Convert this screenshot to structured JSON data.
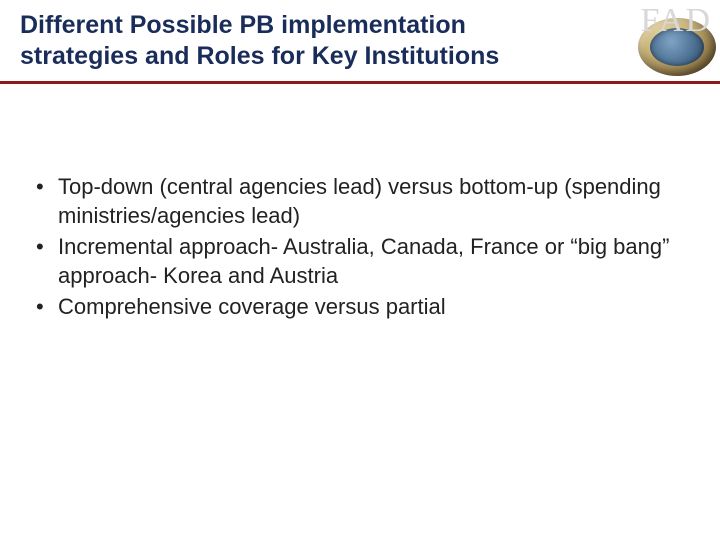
{
  "header": {
    "title": "Different Possible PB implementation strategies and Roles for Key Institutions",
    "logo_text": "FAD",
    "title_color": "#1a2d5a",
    "title_fontsize": 25,
    "rule_color": "#8c1b1b"
  },
  "bullets": [
    "Top-down (central agencies lead) versus bottom-up (spending ministries/agencies lead)",
    "Incremental approach- Australia, Canada, France or “big bang” approach- Korea and Austria",
    "Comprehensive coverage versus partial"
  ],
  "body_text_color": "#222222",
  "body_fontsize": 22,
  "background_color": "#ffffff"
}
